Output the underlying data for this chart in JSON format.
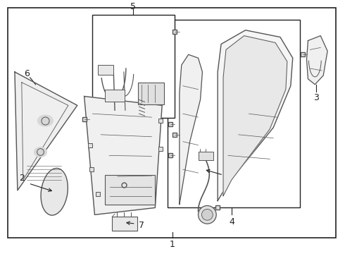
{
  "background_color": "#ffffff",
  "border_color": "#222222",
  "line_color": "#555555",
  "dark_line": "#222222",
  "fig_width": 4.9,
  "fig_height": 3.6,
  "dpi": 100
}
